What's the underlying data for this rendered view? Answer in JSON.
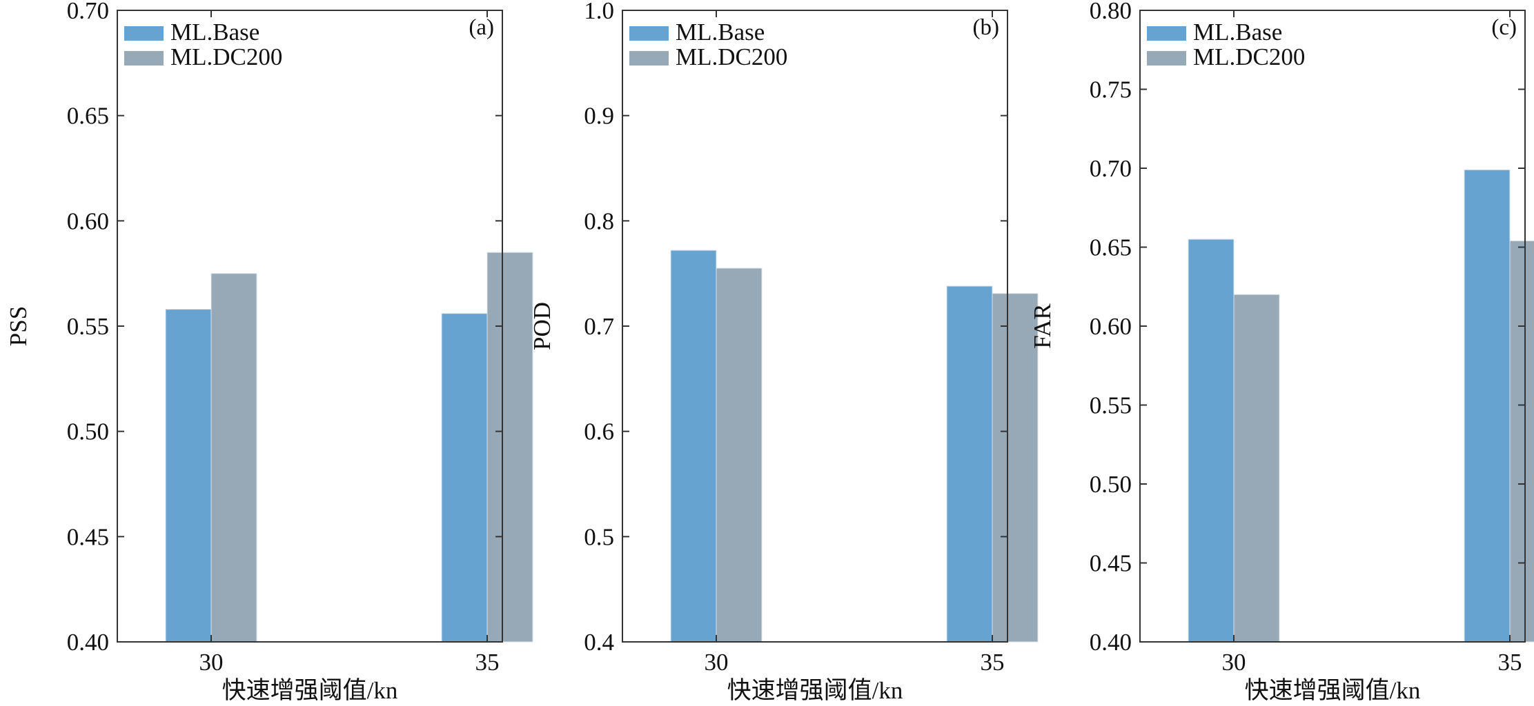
{
  "chart_data": [
    {
      "type": "bar",
      "panel_label": "(a)",
      "categories": [
        "30",
        "35"
      ],
      "series": [
        {
          "name": "ML.Base",
          "values": [
            0.558,
            0.556
          ]
        },
        {
          "name": "ML.DC200",
          "values": [
            0.575,
            0.585
          ]
        }
      ],
      "xlabel": "快速增强阈值/kn",
      "ylabel": "PSS",
      "ylim": [
        0.4,
        0.7
      ],
      "yticks": [
        "0.40",
        "0.45",
        "0.50",
        "0.55",
        "0.60",
        "0.65",
        "0.70"
      ],
      "legend_position": "top-left",
      "grid": false
    },
    {
      "type": "bar",
      "panel_label": "(b)",
      "categories": [
        "30",
        "35"
      ],
      "series": [
        {
          "name": "ML.Base",
          "values": [
            0.772,
            0.738
          ]
        },
        {
          "name": "ML.DC200",
          "values": [
            0.755,
            0.731
          ]
        }
      ],
      "xlabel": "快速增强阈值/kn",
      "ylabel": "POD",
      "ylim": [
        0.4,
        1.0
      ],
      "yticks": [
        "0.4",
        "0.5",
        "0.6",
        "0.7",
        "0.8",
        "0.9",
        "1.0"
      ],
      "legend_position": "top-left",
      "grid": false
    },
    {
      "type": "bar",
      "panel_label": "(c)",
      "categories": [
        "30",
        "35"
      ],
      "series": [
        {
          "name": "ML.Base",
          "values": [
            0.655,
            0.699
          ]
        },
        {
          "name": "ML.DC200",
          "values": [
            0.62,
            0.654
          ]
        }
      ],
      "xlabel": "快速增强阈值/kn",
      "ylabel": "FAR",
      "ylim": [
        0.4,
        0.8
      ],
      "yticks": [
        "0.40",
        "0.45",
        "0.50",
        "0.55",
        "0.60",
        "0.65",
        "0.70",
        "0.75",
        "0.80"
      ],
      "legend_position": "top-left",
      "grid": false
    }
  ],
  "colors": {
    "series": [
      "#66a3d1",
      "#97a8b6"
    ],
    "axis": "#333333"
  }
}
